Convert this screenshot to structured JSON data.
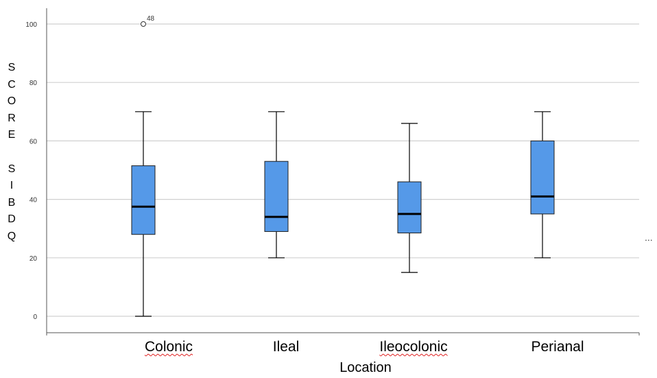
{
  "chart_data": {
    "type": "box",
    "xlabel": "Location",
    "ylabel": "SCORE SIBDQ",
    "ylabel_letters": [
      "S",
      "C",
      "O",
      "R",
      "E",
      "",
      "S",
      "I",
      "B",
      "D",
      "Q"
    ],
    "ylim": [
      0,
      100
    ],
    "yticks": [
      "0",
      "20",
      "40",
      "60",
      "80",
      "100"
    ],
    "grid": true,
    "box_color": "#5599e8",
    "categories": [
      {
        "name": "Colonic",
        "squiggle": true,
        "min": 0,
        "q1": 28,
        "median": 37.5,
        "q3": 51.5,
        "max": 70,
        "outliers": [
          {
            "value": 100,
            "label": "48"
          }
        ]
      },
      {
        "name": "Ileal",
        "squiggle": false,
        "min": 20,
        "q1": 29,
        "median": 34,
        "q3": 53,
        "max": 70,
        "outliers": []
      },
      {
        "name": "Ileocolonic",
        "squiggle": true,
        "min": 15,
        "q1": 28.5,
        "median": 35,
        "q3": 46,
        "max": 66,
        "outliers": []
      },
      {
        "name": "Perianal",
        "squiggle": false,
        "min": 20,
        "q1": 35,
        "median": 41,
        "q3": 60,
        "max": 70,
        "outliers": []
      }
    ]
  },
  "ellipsis": "..."
}
